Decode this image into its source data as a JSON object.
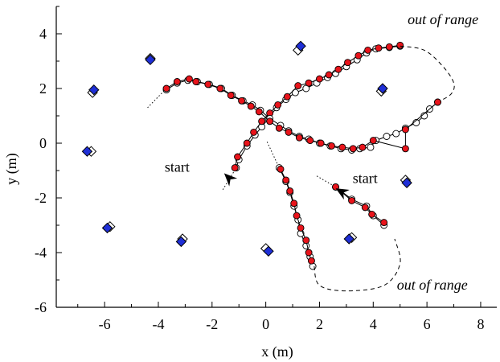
{
  "chart_data": {
    "type": "scatter",
    "xlabel": "x (m)",
    "ylabel": "y (m)",
    "xlim": [
      -7.8,
      8.6
    ],
    "ylim": [
      -6,
      5
    ],
    "xticks": [
      -6,
      -4,
      -2,
      0,
      2,
      4,
      6,
      8
    ],
    "yticks": [
      -6,
      -4,
      -2,
      0,
      2,
      4
    ],
    "xtick_labels": [
      "-6",
      "-4",
      "-2",
      "0",
      "2",
      "4",
      "6",
      "8"
    ],
    "ytick_labels": [
      "-6",
      "-4",
      "-2",
      "0",
      "2",
      "4"
    ],
    "grid": false,
    "colors": {
      "estimate": "#e8141b",
      "landmark_estimate": "#1f2fd6",
      "outline": "#000000"
    },
    "annotations": [
      {
        "id": "start-left",
        "text": "start",
        "x": -3.3,
        "y": -1.05,
        "italic": false,
        "anchor": "middle"
      },
      {
        "id": "start-right",
        "text": "start",
        "x": 3.7,
        "y": -1.45,
        "italic": false,
        "anchor": "middle"
      },
      {
        "id": "oor-top",
        "text": "out of range",
        "x": 6.6,
        "y": 4.35,
        "italic": true,
        "anchor": "middle"
      },
      {
        "id": "oor-bottom",
        "text": "out of range",
        "x": 6.2,
        "y": -5.35,
        "italic": true,
        "anchor": "middle"
      }
    ],
    "landmarks": {
      "true": [
        [
          -4.3,
          3.1
        ],
        [
          -6.45,
          1.85
        ],
        [
          -6.5,
          -0.3
        ],
        [
          -5.8,
          -3.05
        ],
        [
          -3.1,
          -3.5
        ],
        [
          0.0,
          -3.85
        ],
        [
          1.2,
          3.4
        ],
        [
          4.3,
          1.9
        ],
        [
          3.2,
          -3.45
        ],
        [
          5.2,
          -1.35
        ]
      ],
      "estimated": [
        [
          -4.3,
          3.05
        ],
        [
          -6.4,
          1.95
        ],
        [
          -6.65,
          -0.3
        ],
        [
          -5.9,
          -3.1
        ],
        [
          -3.15,
          -3.6
        ],
        [
          0.1,
          -3.95
        ],
        [
          1.3,
          3.55
        ],
        [
          4.35,
          2.0
        ],
        [
          3.1,
          -3.5
        ],
        [
          5.25,
          -1.45
        ]
      ]
    },
    "series": [
      {
        "name": "",
        "true_path": [
          [
            -1.1,
            -0.9
          ],
          [
            -1.0,
            -0.6
          ],
          [
            -0.7,
            -0.1
          ],
          [
            -0.4,
            0.3
          ],
          [
            -0.15,
            0.6
          ],
          [
            0.1,
            0.9
          ],
          [
            0.4,
            1.3
          ],
          [
            0.75,
            1.6
          ],
          [
            1.1,
            1.85
          ],
          [
            1.5,
            2.0
          ],
          [
            1.9,
            2.2
          ],
          [
            2.3,
            2.4
          ],
          [
            2.6,
            2.55
          ],
          [
            3.0,
            2.8
          ],
          [
            3.4,
            3.05
          ],
          [
            3.75,
            3.3
          ],
          [
            4.1,
            3.45
          ],
          [
            4.6,
            3.5
          ],
          [
            5.0,
            3.55
          ]
        ],
        "estimated_path": [
          [
            -1.15,
            -0.9
          ],
          [
            -1.05,
            -0.5
          ],
          [
            -0.7,
            0.0
          ],
          [
            -0.45,
            0.4
          ],
          [
            -0.15,
            0.8
          ],
          [
            0.15,
            1.1
          ],
          [
            0.45,
            1.4
          ],
          [
            0.8,
            1.7
          ],
          [
            1.2,
            2.1
          ],
          [
            1.6,
            2.2
          ],
          [
            2.0,
            2.35
          ],
          [
            2.35,
            2.5
          ],
          [
            2.7,
            2.7
          ],
          [
            3.05,
            2.95
          ],
          [
            3.45,
            3.2
          ],
          [
            3.8,
            3.4
          ],
          [
            4.2,
            3.48
          ],
          [
            4.6,
            3.52
          ],
          [
            5.0,
            3.58
          ]
        ],
        "dotted_tail": [
          [
            -1.6,
            -1.7
          ],
          [
            -1.1,
            -0.9
          ]
        ],
        "start": {
          "x": -1.55,
          "y": -1.1,
          "angle_deg": 225
        },
        "dashed_gap": [
          [
            5.0,
            3.55
          ],
          [
            5.9,
            3.4
          ],
          [
            6.6,
            2.8
          ],
          [
            7.0,
            2.2
          ],
          [
            6.9,
            1.8
          ],
          [
            6.4,
            1.5
          ]
        ],
        "return_true_path": [
          [
            6.4,
            1.5
          ],
          [
            6.1,
            1.25
          ],
          [
            5.9,
            1.0
          ],
          [
            5.6,
            0.75
          ],
          [
            5.2,
            0.55
          ],
          [
            4.85,
            0.35
          ],
          [
            4.5,
            0.25
          ],
          [
            4.1,
            0.1
          ],
          [
            3.9,
            -0.15
          ],
          [
            3.5,
            -0.2
          ],
          [
            3.2,
            -0.25
          ],
          [
            2.8,
            -0.2
          ],
          [
            2.4,
            -0.1
          ],
          [
            2.0,
            0.0
          ],
          [
            1.6,
            0.15
          ],
          [
            1.25,
            0.25
          ],
          [
            0.85,
            0.45
          ],
          [
            0.55,
            0.65
          ],
          [
            0.15,
            0.9
          ],
          [
            -0.2,
            1.2
          ],
          [
            -0.5,
            1.4
          ],
          [
            -0.85,
            1.55
          ],
          [
            -1.25,
            1.75
          ],
          [
            -1.65,
            2.0
          ],
          [
            -2.1,
            2.15
          ],
          [
            -2.55,
            2.25
          ],
          [
            -2.9,
            2.3
          ],
          [
            -3.3,
            2.2
          ],
          [
            -3.7,
            1.95
          ]
        ],
        "return_estimated_path": [
          [
            6.4,
            1.5
          ],
          [
            5.2,
            0.5
          ],
          [
            5.2,
            -0.2
          ],
          [
            4.0,
            0.1
          ],
          [
            3.6,
            -0.15
          ],
          [
            3.25,
            -0.2
          ],
          [
            2.85,
            -0.15
          ],
          [
            2.45,
            -0.1
          ],
          [
            2.05,
            0.0
          ],
          [
            1.65,
            0.1
          ],
          [
            1.25,
            0.2
          ],
          [
            0.85,
            0.4
          ],
          [
            0.5,
            0.55
          ],
          [
            0.15,
            0.8
          ],
          [
            -0.25,
            1.15
          ],
          [
            -0.55,
            1.35
          ],
          [
            -0.9,
            1.55
          ],
          [
            -1.3,
            1.75
          ],
          [
            -1.7,
            2.0
          ],
          [
            -2.15,
            2.15
          ],
          [
            -2.6,
            2.25
          ],
          [
            -2.85,
            2.35
          ],
          [
            -3.3,
            2.25
          ],
          [
            -3.7,
            2.0
          ]
        ],
        "return_dotted_tail": [
          [
            -3.7,
            2.0
          ],
          [
            -4.4,
            1.3
          ]
        ]
      },
      {
        "name": "",
        "true_path": [
          [
            0.5,
            -0.9
          ],
          [
            0.75,
            -1.4
          ],
          [
            0.9,
            -1.8
          ],
          [
            1.05,
            -2.3
          ],
          [
            1.2,
            -2.8
          ],
          [
            1.3,
            -3.3
          ],
          [
            1.5,
            -3.75
          ],
          [
            1.65,
            -4.15
          ],
          [
            1.75,
            -4.5
          ]
        ],
        "estimated_path": [
          [
            0.55,
            -0.95
          ],
          [
            0.75,
            -1.35
          ],
          [
            0.9,
            -1.75
          ],
          [
            1.05,
            -2.2
          ],
          [
            1.15,
            -2.65
          ],
          [
            1.3,
            -3.1
          ],
          [
            1.5,
            -3.55
          ],
          [
            1.6,
            -4.0
          ],
          [
            1.7,
            -4.3
          ]
        ],
        "dotted_tail": [
          [
            0.05,
            0.05
          ],
          [
            0.5,
            -0.9
          ]
        ],
        "start": null,
        "dashed_gap": [
          [
            1.8,
            -4.5
          ],
          [
            2.0,
            -5.2
          ],
          [
            3.0,
            -5.4
          ],
          [
            4.4,
            -5.2
          ],
          [
            5.0,
            -4.4
          ],
          [
            4.8,
            -3.5
          ]
        ],
        "return_true_path": [],
        "return_estimated_path": [],
        "return_dotted_tail": []
      },
      {
        "name": "",
        "true_path": [
          [
            2.6,
            -1.6
          ],
          [
            3.2,
            -2.05
          ],
          [
            3.75,
            -2.3
          ],
          [
            4.0,
            -2.65
          ],
          [
            4.4,
            -3.0
          ]
        ],
        "estimated_path": [
          [
            2.6,
            -1.6
          ],
          [
            3.2,
            -2.1
          ],
          [
            3.7,
            -2.35
          ],
          [
            3.95,
            -2.6
          ],
          [
            4.4,
            -2.9
          ]
        ],
        "dotted_tail": [
          [
            1.9,
            -1.2
          ],
          [
            2.6,
            -1.6
          ]
        ],
        "start": {
          "x": 2.6,
          "y": -1.65,
          "angle_deg": 210
        },
        "dashed_gap": [],
        "return_true_path": [],
        "return_estimated_path": [],
        "return_dotted_tail": []
      }
    ]
  }
}
